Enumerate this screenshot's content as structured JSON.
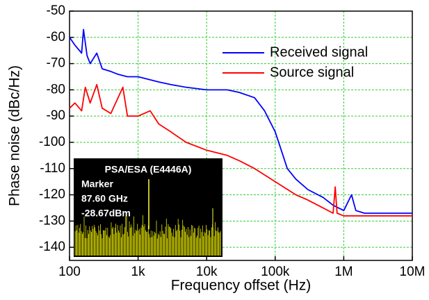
{
  "chart_data": {
    "type": "line",
    "x_label": "Frequency offset (Hz)",
    "y_label": "Phase noise (dBc/Hz)",
    "log_x": true,
    "grid": true,
    "grid_color": "#33cc33",
    "legend": "upper right",
    "xlim": [
      100,
      10000000
    ],
    "xticks": [
      100,
      {
        "value": 1000,
        "label": "1k"
      },
      {
        "value": 10000,
        "label": "10k"
      },
      {
        "value": 100000,
        "label": "100k"
      },
      {
        "value": 1000000,
        "label": "1M"
      },
      {
        "value": 10000000,
        "label": "10M"
      }
    ],
    "ylim": [
      -145,
      -50
    ],
    "yticks": [
      -140,
      -130,
      -120,
      -110,
      -100,
      -90,
      -80,
      -70,
      -60,
      -50
    ],
    "series": [
      {
        "name": "Received signal",
        "color": "#0000ff",
        "x": [
          100,
          120,
          150,
          160,
          180,
          200,
          250,
          300,
          400,
          500,
          700,
          1000,
          2000,
          3000,
          5000,
          10000,
          20000,
          30000,
          50000,
          70000,
          100000,
          130000,
          150000,
          200000,
          300000,
          500000,
          700000,
          1000000,
          1300000,
          1500000,
          2000000,
          3000000,
          5000000,
          10000000
        ],
        "values": [
          -60,
          -63,
          -66,
          -57,
          -67,
          -70,
          -66,
          -72,
          -73,
          -74,
          -75,
          -75,
          -77,
          -78,
          -79,
          -80,
          -80,
          -81,
          -83,
          -88,
          -96,
          -105,
          -110,
          -114,
          -118,
          -121,
          -124,
          -126,
          -120,
          -126,
          -127,
          -127,
          -127,
          -127
        ]
      },
      {
        "name": "Source signal",
        "color": "#ff0000",
        "x": [
          100,
          120,
          150,
          170,
          200,
          250,
          300,
          400,
          600,
          700,
          1000,
          1500,
          2000,
          3000,
          5000,
          10000,
          20000,
          30000,
          50000,
          100000,
          200000,
          300000,
          500000,
          700000,
          750000,
          800000,
          1000000,
          2000000,
          5000000,
          10000000
        ],
        "values": [
          -87,
          -85,
          -88,
          -79,
          -85,
          -78,
          -87,
          -89,
          -79,
          -90,
          -90,
          -88,
          -93,
          -96,
          -100,
          -103,
          -105,
          -107,
          -110,
          -115,
          -120,
          -122,
          -125,
          -127,
          -117,
          -127,
          -128,
          -128,
          -128,
          -128
        ]
      }
    ],
    "inset": {
      "title": "PSA/ESA (E4446A)",
      "lines": [
        "Marker",
        "87.60 GHz",
        "-28.67dBm"
      ]
    }
  }
}
